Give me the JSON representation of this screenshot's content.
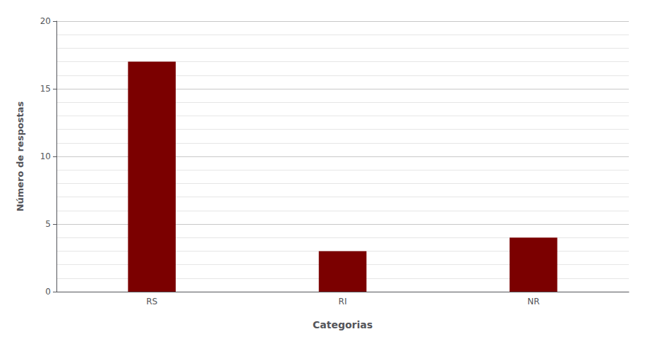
{
  "chart_data": {
    "type": "bar",
    "xlabel": "Categorias",
    "ylabel": "Número de respostas",
    "categories": [
      "RS",
      "RI",
      "NR"
    ],
    "values": [
      17,
      3,
      4
    ],
    "color": "#7B0000",
    "ylim": [
      0,
      20
    ],
    "yticks": [
      0,
      5,
      10,
      15,
      20
    ],
    "grid": true
  }
}
